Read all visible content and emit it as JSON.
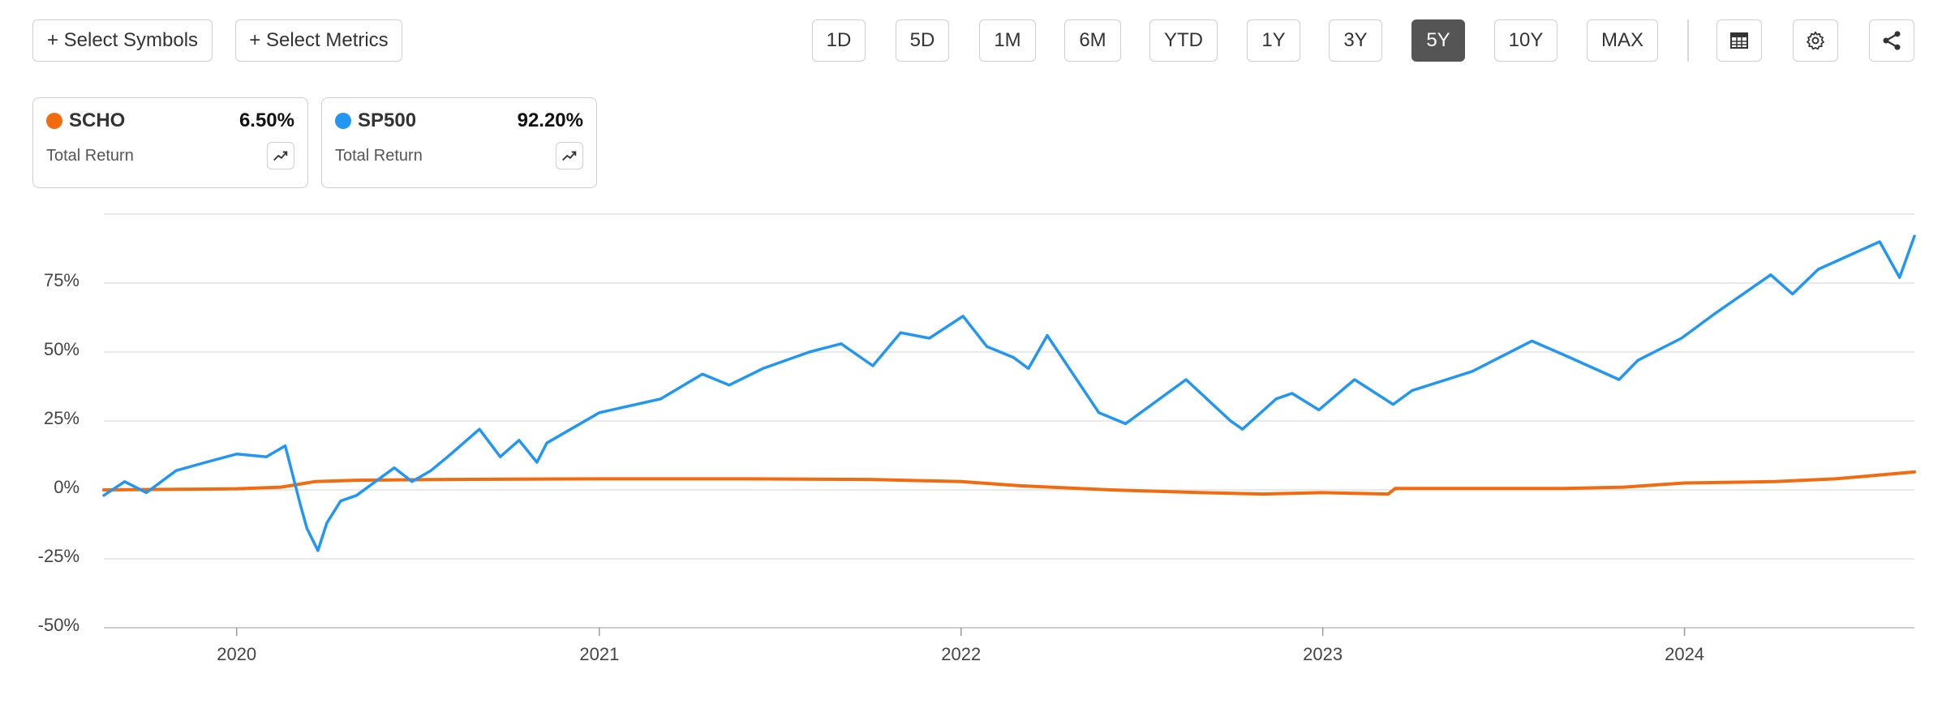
{
  "toolbar": {
    "select_symbols": "+ Select Symbols",
    "select_metrics": "+ Select Metrics",
    "ranges": [
      "1D",
      "5D",
      "1M",
      "6M",
      "YTD",
      "1Y",
      "3Y",
      "5Y",
      "10Y",
      "MAX"
    ],
    "active_range": "5Y",
    "icons": [
      "table-icon",
      "gear-icon",
      "share-icon"
    ]
  },
  "cards": [
    {
      "symbol": "SCHO",
      "value": "6.50%",
      "label": "Total Return",
      "color": "#f26b0f",
      "icon": "trend-up-icon"
    },
    {
      "symbol": "SP500",
      "value": "92.20%",
      "label": "Total Return",
      "color": "#2196f3",
      "icon": "trend-up-icon"
    }
  ],
  "chart_data": {
    "type": "line",
    "x_tick_labels": [
      "2020",
      "2021",
      "2022",
      "2023",
      "2024"
    ],
    "y_tick_labels": [
      "75%",
      "50%",
      "25%",
      "0%",
      "-25%",
      "-50%"
    ],
    "ylim": [
      -50,
      100
    ],
    "xlim": [
      "2019-08-20",
      "2024-08-20"
    ],
    "grid": true,
    "series": [
      {
        "name": "SCHO",
        "color": "#f26b0f",
        "x": [
          "2019-08-20",
          "2019-11-01",
          "2020-01-01",
          "2020-02-15",
          "2020-03-20",
          "2020-05-01",
          "2020-08-01",
          "2021-01-01",
          "2021-06-01",
          "2021-10-01",
          "2022-01-01",
          "2022-03-01",
          "2022-06-01",
          "2022-09-01",
          "2022-11-01",
          "2023-01-01",
          "2023-03-08",
          "2023-03-15",
          "2023-06-01",
          "2023-09-01",
          "2023-11-01",
          "2024-01-01",
          "2024-04-01",
          "2024-06-01",
          "2024-08-20"
        ],
        "values": [
          0.0,
          0.2,
          0.4,
          1.0,
          3.0,
          3.5,
          3.8,
          4.0,
          4.0,
          3.8,
          3.0,
          1.5,
          0.0,
          -1.0,
          -1.5,
          -1.0,
          -1.5,
          0.5,
          0.5,
          0.5,
          1.0,
          2.5,
          3.0,
          4.0,
          6.5
        ]
      },
      {
        "name": "SP500",
        "color": "#2196f3",
        "x": [
          "2019-08-20",
          "2019-09-10",
          "2019-10-02",
          "2019-11-01",
          "2019-12-01",
          "2020-01-01",
          "2020-01-31",
          "2020-02-19",
          "2020-03-05",
          "2020-03-12",
          "2020-03-23",
          "2020-04-01",
          "2020-04-15",
          "2020-05-01",
          "2020-06-08",
          "2020-06-26",
          "2020-07-15",
          "2020-08-01",
          "2020-09-02",
          "2020-09-23",
          "2020-10-12",
          "2020-10-30",
          "2020-11-09",
          "2021-01-01",
          "2021-03-04",
          "2021-04-15",
          "2021-05-12",
          "2021-06-15",
          "2021-08-01",
          "2021-09-02",
          "2021-10-04",
          "2021-11-01",
          "2021-11-30",
          "2022-01-03",
          "2022-01-27",
          "2022-02-23",
          "2022-03-10",
          "2022-03-29",
          "2022-05-20",
          "2022-06-16",
          "2022-08-16",
          "2022-09-30",
          "2022-10-12",
          "2022-11-15",
          "2022-12-01",
          "2022-12-28",
          "2023-02-02",
          "2023-03-13",
          "2023-04-01",
          "2023-06-01",
          "2023-07-31",
          "2023-09-01",
          "2023-10-27",
          "2023-11-15",
          "2023-12-29",
          "2024-02-01",
          "2024-03-28",
          "2024-04-19",
          "2024-05-15",
          "2024-07-16",
          "2024-08-05",
          "2024-08-20"
        ],
        "values": [
          -2,
          3,
          -1,
          7,
          10,
          13,
          12,
          16,
          -5,
          -14,
          -22,
          -12,
          -4,
          -2,
          8,
          3,
          7,
          12,
          22,
          12,
          18,
          10,
          17,
          28,
          33,
          42,
          38,
          44,
          50,
          53,
          45,
          57,
          55,
          63,
          52,
          48,
          44,
          56,
          28,
          24,
          40,
          25,
          22,
          33,
          35,
          29,
          40,
          31,
          36,
          43,
          54,
          49,
          40,
          47,
          55,
          64,
          78,
          71,
          80,
          90,
          77,
          92
        ]
      }
    ]
  }
}
